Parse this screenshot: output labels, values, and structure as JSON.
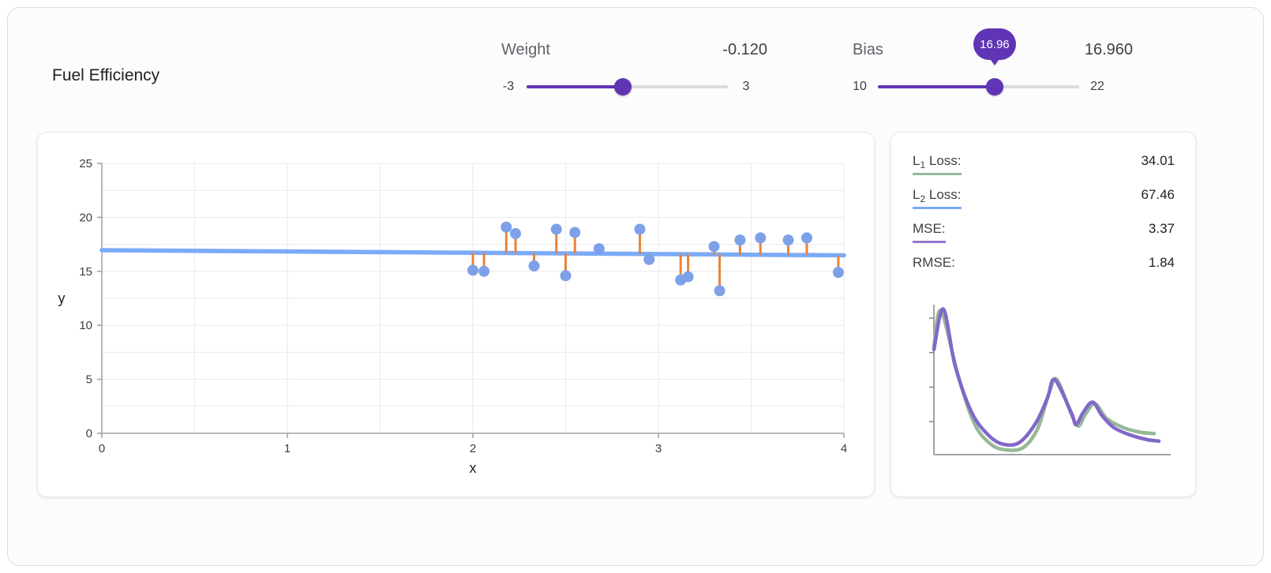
{
  "page": {
    "title": "Fuel Efficiency"
  },
  "controls": {
    "weight": {
      "label": "Weight",
      "value_display": "-0.120",
      "value": -0.12,
      "min": -3,
      "max": 3,
      "min_label": "-3",
      "max_label": "3"
    },
    "bias": {
      "label": "Bias",
      "value_display": "16.960",
      "value": 16.96,
      "min": 10,
      "max": 22,
      "min_label": "10",
      "max_label": "22",
      "tooltip": "16.96"
    }
  },
  "loss_panel": {
    "rows": [
      {
        "prefix": "L",
        "sub": "1",
        "suffix": " Loss:",
        "value": "34.01",
        "underline_color": "#96b997"
      },
      {
        "prefix": "L",
        "sub": "2",
        "suffix": " Loss:",
        "value": "67.46",
        "underline_color": "#7baaf7"
      },
      {
        "prefix": "MSE:",
        "sub": "",
        "suffix": "",
        "value": "3.37",
        "underline_color": "#9575cd"
      },
      {
        "prefix": "RMSE:",
        "sub": "",
        "suffix": "",
        "value": "1.84",
        "underline_color": ""
      }
    ]
  },
  "colors": {
    "accent_purple": "#5f35b5",
    "dot_blue": "#7da1e8",
    "line_blue": "#7baaf7",
    "residual_orange": "#e8833a",
    "axis_gray": "#9aa0a6",
    "grid_gray": "#e9eaef"
  },
  "chart_data": [
    {
      "type": "scatter",
      "title": "",
      "xlabel": "x",
      "ylabel": "y",
      "xlim": [
        0,
        4
      ],
      "ylim": [
        0,
        25
      ],
      "x_ticks": [
        0,
        1,
        2,
        3,
        4
      ],
      "y_ticks": [
        0,
        5,
        10,
        15,
        20,
        25
      ],
      "grid": true,
      "points": [
        [
          2.0,
          15.1
        ],
        [
          2.06,
          15.0
        ],
        [
          2.18,
          19.1
        ],
        [
          2.23,
          18.5
        ],
        [
          2.33,
          15.5
        ],
        [
          2.45,
          18.9
        ],
        [
          2.5,
          14.6
        ],
        [
          2.55,
          18.6
        ],
        [
          2.68,
          17.1
        ],
        [
          2.9,
          18.9
        ],
        [
          2.95,
          16.1
        ],
        [
          3.12,
          14.2
        ],
        [
          3.16,
          14.5
        ],
        [
          3.3,
          17.3
        ],
        [
          3.33,
          13.2
        ],
        [
          3.44,
          17.9
        ],
        [
          3.55,
          18.1
        ],
        [
          3.7,
          17.9
        ],
        [
          3.8,
          18.1
        ],
        [
          3.97,
          14.9
        ]
      ],
      "model_line": {
        "weight": -0.12,
        "bias": 16.96
      },
      "residuals": true
    },
    {
      "type": "line",
      "title": "",
      "xlabel": "",
      "ylabel": "",
      "legend": "none",
      "y_axis_ticks": [
        22,
        45,
        68,
        91
      ],
      "series": [
        {
          "name": "l1-loss-curve",
          "color": "#96b997",
          "points": [
            [
              0,
              72
            ],
            [
              3,
              96
            ],
            [
              10,
              54
            ],
            [
              17,
              21
            ],
            [
              24,
              7
            ],
            [
              31,
              3
            ],
            [
              38,
              5
            ],
            [
              44,
              18
            ],
            [
              49,
              43
            ],
            [
              52,
              50
            ],
            [
              58,
              27
            ],
            [
              61,
              19
            ],
            [
              64,
              27
            ],
            [
              68,
              34
            ],
            [
              73,
              24
            ],
            [
              80,
              18
            ],
            [
              87,
              15
            ],
            [
              93,
              14
            ]
          ]
        },
        {
          "name": "mse-loss-curve",
          "color": "#8268c9",
          "points": [
            [
              0,
              70
            ],
            [
              4,
              97
            ],
            [
              9,
              59
            ],
            [
              16,
              28
            ],
            [
              23,
              13
            ],
            [
              29,
              7
            ],
            [
              36,
              8
            ],
            [
              43,
              21
            ],
            [
              48,
              38
            ],
            [
              51,
              50
            ],
            [
              58,
              28
            ],
            [
              60,
              20
            ],
            [
              63,
              28
            ],
            [
              67,
              35
            ],
            [
              71,
              26
            ],
            [
              76,
              18
            ],
            [
              83,
              13
            ],
            [
              90,
              10
            ],
            [
              95,
              9
            ]
          ]
        }
      ]
    }
  ]
}
